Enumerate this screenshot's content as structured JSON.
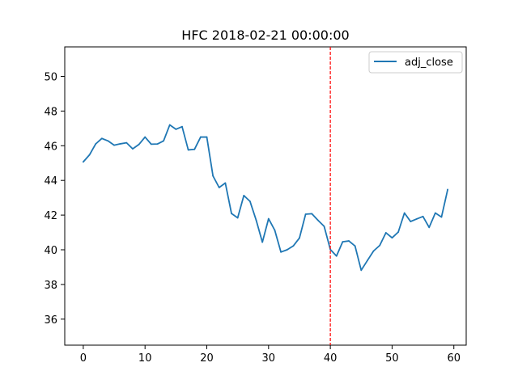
{
  "chart_data": {
    "type": "line",
    "title": "HFC 2018-02-21 00:00:00",
    "xlabel": "",
    "ylabel": "",
    "xlim": [
      -3,
      62
    ],
    "ylim": [
      34.5,
      51.7
    ],
    "x_ticks": [
      0,
      10,
      20,
      30,
      40,
      50,
      60
    ],
    "y_ticks": [
      36,
      38,
      40,
      42,
      44,
      46,
      48,
      50
    ],
    "x_tick_labels": [
      "0",
      "10",
      "20",
      "30",
      "40",
      "50",
      "60"
    ],
    "y_tick_labels": [
      "36",
      "38",
      "40",
      "42",
      "44",
      "46",
      "48",
      "50"
    ],
    "grid": false,
    "legend_position": "top-right",
    "series": [
      {
        "name": "adj_close",
        "color": "#1f77b4",
        "x": [
          0,
          1,
          2,
          3,
          4,
          5,
          6,
          7,
          8,
          9,
          10,
          11,
          12,
          13,
          14,
          15,
          16,
          17,
          18,
          19,
          20,
          21,
          22,
          23,
          24,
          25,
          26,
          27,
          28,
          29,
          30,
          31,
          32,
          33,
          34,
          35,
          36,
          37,
          38,
          39,
          40,
          41,
          42,
          43,
          44,
          45,
          46,
          47,
          48,
          49,
          50,
          51,
          52,
          53,
          54,
          55,
          56,
          57,
          58,
          59
        ],
        "values": [
          45.07,
          45.47,
          46.1,
          46.42,
          46.28,
          46.03,
          46.11,
          46.17,
          45.82,
          46.07,
          46.5,
          46.09,
          46.1,
          46.28,
          47.2,
          46.95,
          47.1,
          45.76,
          45.79,
          46.5,
          46.5,
          44.26,
          43.59,
          43.85,
          42.09,
          41.84,
          43.13,
          42.79,
          41.7,
          40.44,
          41.79,
          41.13,
          39.87,
          40.0,
          40.22,
          40.68,
          42.05,
          42.08,
          41.7,
          41.35,
          40.02,
          39.64,
          40.46,
          40.51,
          40.22,
          38.82,
          39.38,
          39.93,
          40.25,
          40.98,
          40.69,
          41.02,
          42.12,
          41.63,
          41.78,
          41.92,
          41.29,
          42.12,
          41.89,
          43.47
        ]
      }
    ],
    "vertical_line": {
      "x": 40,
      "color": "#ff0000",
      "style": "dashed"
    }
  }
}
